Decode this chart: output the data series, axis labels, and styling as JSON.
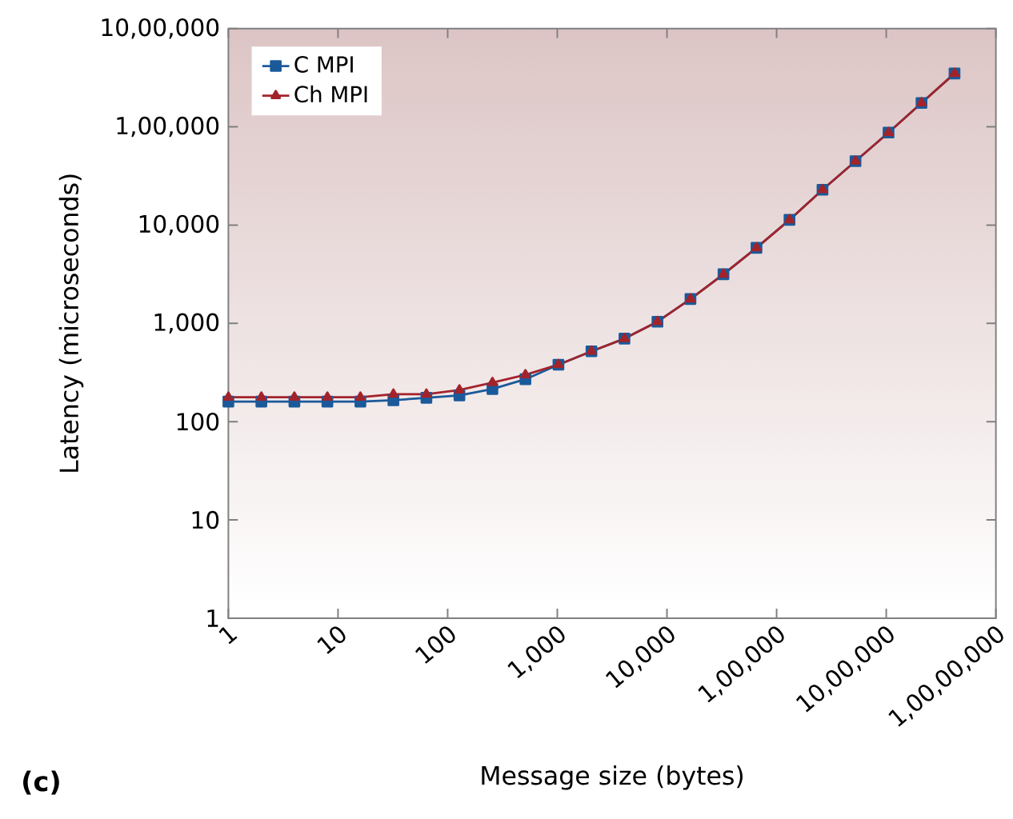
{
  "chart_data": {
    "type": "line",
    "xlabel": "Message size (bytes)",
    "ylabel": "Latency (microseconds)",
    "annotations": [
      "(c)"
    ],
    "x": [
      1,
      2,
      4,
      8,
      16,
      32,
      64,
      128,
      256,
      512,
      1024,
      2048,
      4096,
      8192,
      16384,
      32768,
      65536,
      131072,
      262144,
      524288,
      1048576,
      2097152,
      4194304
    ],
    "series": [
      {
        "name": "C MPI",
        "color": "#1a5a9a",
        "marker": "square",
        "values": [
          160,
          160,
          160,
          160,
          160,
          165,
          175,
          185,
          215,
          270,
          380,
          520,
          700,
          1040,
          1770,
          3160,
          5870,
          11300,
          22900,
          44700,
          87300,
          175000,
          349000
        ]
      },
      {
        "name": "Ch MPI",
        "color": "#a3232b",
        "marker": "triangle",
        "values": [
          177,
          177,
          177,
          177,
          177,
          190,
          190,
          210,
          250,
          300,
          380,
          520,
          700,
          1040,
          1770,
          3160,
          5870,
          11300,
          22900,
          44700,
          87300,
          175000,
          349000
        ]
      }
    ],
    "log": "xy",
    "line_style": "solid",
    "legend": "top left",
    "grid": false,
    "xlim": [
      1,
      10000000
    ],
    "ylim": [
      1,
      1000000
    ],
    "xticks": [
      {
        "value": 1,
        "label": "1"
      },
      {
        "value": 10,
        "label": "10"
      },
      {
        "value": 100,
        "label": "100"
      },
      {
        "value": 1000,
        "label": "1,000"
      },
      {
        "value": 10000,
        "label": "10,000"
      },
      {
        "value": 100000,
        "label": "1,00,000"
      },
      {
        "value": 1000000,
        "label": "10,00,000"
      },
      {
        "value": 10000000,
        "label": "1,00,00,000"
      }
    ],
    "yticks": [
      {
        "value": 1,
        "label": "1"
      },
      {
        "value": 10,
        "label": "10"
      },
      {
        "value": 100,
        "label": "100"
      },
      {
        "value": 1000,
        "label": "1,000"
      },
      {
        "value": 10000,
        "label": "10,000"
      },
      {
        "value": 100000,
        "label": "1,00,000"
      },
      {
        "value": 1000000,
        "label": "10,00,000"
      }
    ]
  }
}
